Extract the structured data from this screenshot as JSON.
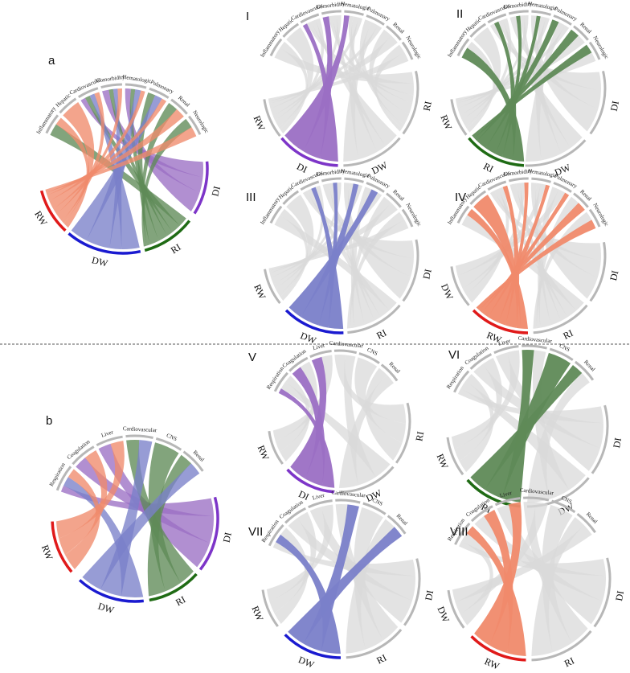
{
  "colors": {
    "DI": "#9b6fc4",
    "RI": "#5f8a57",
    "DW": "#7a80c9",
    "RW": "#f08a6c",
    "inactive": "#d9d9d9",
    "ring_gray": "#b7b7b7",
    "DI_bar": "#7d35c8",
    "RI_bar": "#1f6b14",
    "DW_bar": "#1a1ad0",
    "RW_bar": "#e01a1a"
  },
  "divider": "dashed horizontal line",
  "panels": [
    {
      "id": "a",
      "label": "a",
      "kind": "overview",
      "set": "A",
      "highlight": null
    },
    {
      "id": "I",
      "label": "I",
      "set": "A",
      "highlight": "DI"
    },
    {
      "id": "II",
      "label": "II",
      "set": "A",
      "highlight": "RI"
    },
    {
      "id": "III",
      "label": "III",
      "set": "A",
      "highlight": "DW"
    },
    {
      "id": "IV",
      "label": "IV",
      "set": "A",
      "highlight": "RW"
    },
    {
      "id": "b",
      "label": "b",
      "kind": "overview",
      "set": "B",
      "highlight": null
    },
    {
      "id": "V",
      "label": "V",
      "set": "B",
      "highlight": "DI"
    },
    {
      "id": "VI",
      "label": "VI",
      "set": "B",
      "highlight": "RI"
    },
    {
      "id": "VII",
      "label": "VII",
      "set": "B",
      "highlight": "DW"
    },
    {
      "id": "VIII",
      "label": "VIII",
      "set": "B",
      "highlight": "RW"
    }
  ],
  "sets": {
    "A": {
      "categories": [
        "Inflammatory",
        "Hepatic",
        "Cardiovascular",
        "Comorbidity",
        "Hematologic",
        "Pulmonary",
        "Renal",
        "Neurologic"
      ],
      "groups": [
        "DI",
        "RI",
        "DW",
        "RW"
      ],
      "links": {
        "DI": [
          0,
          0,
          3,
          3,
          4,
          0,
          0,
          0
        ],
        "RI": [
          3,
          0,
          3,
          2,
          3,
          3,
          1,
          1
        ],
        "DW": [
          0,
          0,
          3,
          2,
          4,
          3,
          0,
          0
        ],
        "RW": [
          2,
          1,
          3,
          2,
          3,
          2,
          1,
          1
        ]
      }
    },
    "B": {
      "categories": [
        "Respiration",
        "Coagulation",
        "Liver",
        "Cardiovascular",
        "CNS",
        "Renal"
      ],
      "groups": [
        "DI",
        "RI",
        "DW",
        "RW"
      ],
      "links": {
        "DI": [
          2,
          3,
          3,
          0,
          0,
          0
        ],
        "RI": [
          0,
          0,
          0,
          3,
          3,
          3
        ],
        "DW": [
          3,
          0,
          0,
          3,
          0,
          3
        ],
        "RW": [
          3,
          3,
          3,
          0,
          0,
          0
        ]
      }
    }
  }
}
